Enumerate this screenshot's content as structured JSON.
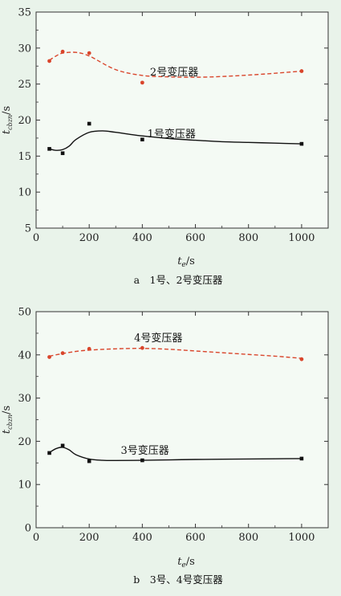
{
  "chart_data": [
    {
      "type": "scatter",
      "title": "",
      "caption": "a　1号、2号变压器",
      "xlabel": "t_e/s",
      "xlabel_base": "t",
      "xlabel_sub": "e",
      "xlabel_unit": "/s",
      "ylabel": "t_cbzn/s",
      "ylabel_base": "t",
      "ylabel_sub": "cbzn",
      "ylabel_unit": "/s",
      "xlim": [
        0,
        1100
      ],
      "ylim": [
        5,
        35
      ],
      "xticks": [
        0,
        200,
        400,
        600,
        800,
        1000
      ],
      "yticks": [
        5,
        10,
        15,
        20,
        25,
        30,
        35
      ],
      "xtick_labels": [
        "0",
        "200",
        "400",
        "600",
        "800",
        "1000"
      ],
      "ytick_labels": [
        "5",
        "10",
        "15",
        "20",
        "25",
        "30",
        "35"
      ],
      "grid": false,
      "series": [
        {
          "name": "2号变压器",
          "color": "#d9452b",
          "marker": "circle",
          "line_style": "dashed",
          "x": [
            50,
            100,
            200,
            400,
            1000
          ],
          "y": [
            28.2,
            29.5,
            29.3,
            25.2,
            26.8
          ],
          "fit_x": [
            50,
            75,
            100,
            150,
            200,
            300,
            400,
            500,
            600,
            700,
            800,
            900,
            1000
          ],
          "fit_y": [
            28.3,
            28.9,
            29.3,
            29.4,
            28.9,
            27.0,
            26.2,
            26.0,
            25.95,
            26.05,
            26.25,
            26.5,
            26.8
          ],
          "label_at": [
            520,
            26.2
          ]
        },
        {
          "name": "1号变压器",
          "color": "#111111",
          "marker": "square",
          "line_style": "solid",
          "x": [
            50,
            100,
            200,
            400,
            1000
          ],
          "y": [
            16.0,
            15.4,
            19.5,
            17.3,
            16.7
          ],
          "fit_x": [
            50,
            75,
            100,
            125,
            150,
            200,
            250,
            300,
            400,
            500,
            600,
            700,
            800,
            900,
            1000
          ],
          "fit_y": [
            16.0,
            15.8,
            15.9,
            16.4,
            17.3,
            18.3,
            18.5,
            18.3,
            17.8,
            17.45,
            17.2,
            17.0,
            16.9,
            16.8,
            16.7
          ],
          "label_at": [
            510,
            17.6
          ]
        }
      ]
    },
    {
      "type": "scatter",
      "title": "",
      "caption": "b　3号、4号变压器",
      "xlabel": "t_e/s",
      "xlabel_base": "t",
      "xlabel_sub": "e",
      "xlabel_unit": "/s",
      "ylabel": "t_cbzn/s",
      "ylabel_base": "t",
      "ylabel_sub": "cbzn",
      "ylabel_unit": "/s",
      "xlim": [
        0,
        1100
      ],
      "ylim": [
        0,
        50
      ],
      "xticks": [
        0,
        200,
        400,
        600,
        800,
        1000
      ],
      "yticks": [
        0,
        10,
        20,
        30,
        40,
        50
      ],
      "xtick_labels": [
        "0",
        "200",
        "400",
        "600",
        "800",
        "1000"
      ],
      "ytick_labels": [
        "0",
        "10",
        "20",
        "30",
        "40",
        "50"
      ],
      "grid": false,
      "series": [
        {
          "name": "4号变压器",
          "color": "#d9452b",
          "marker": "circle",
          "line_style": "dashed",
          "x": [
            50,
            100,
            200,
            400,
            1000
          ],
          "y": [
            39.5,
            40.4,
            41.4,
            41.6,
            39.0
          ],
          "fit_x": [
            50,
            100,
            150,
            200,
            300,
            400,
            500,
            600,
            700,
            800,
            900,
            1000
          ],
          "fit_y": [
            39.7,
            40.3,
            40.8,
            41.1,
            41.4,
            41.5,
            41.3,
            40.9,
            40.5,
            40.1,
            39.7,
            39.2
          ],
          "label_at": [
            460,
            43.1
          ]
        },
        {
          "name": "3号变压器",
          "color": "#111111",
          "marker": "square",
          "line_style": "solid",
          "x": [
            50,
            100,
            200,
            400,
            1000
          ],
          "y": [
            17.3,
            19.0,
            15.4,
            15.6,
            16.0
          ],
          "fit_x": [
            50,
            75,
            100,
            125,
            150,
            200,
            250,
            300,
            400,
            500,
            600,
            700,
            800,
            900,
            1000
          ],
          "fit_y": [
            17.4,
            18.3,
            18.6,
            18.0,
            16.9,
            15.9,
            15.6,
            15.55,
            15.6,
            15.7,
            15.8,
            15.85,
            15.9,
            15.95,
            16.0
          ],
          "label_at": [
            410,
            17.1
          ]
        }
      ]
    }
  ]
}
